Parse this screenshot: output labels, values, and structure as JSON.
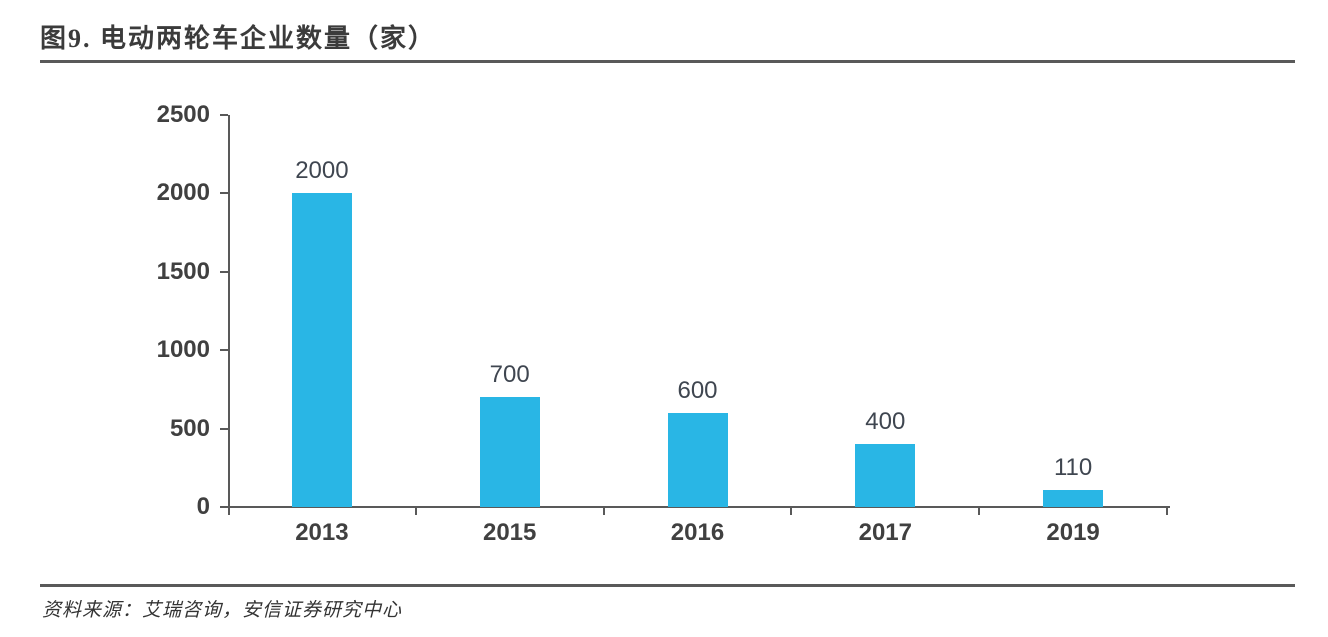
{
  "figure": {
    "title": "图9. 电动两轮车企业数量（家）"
  },
  "source": {
    "text": "资料来源：艾瑞咨询，安信证券研究中心"
  },
  "chart_data": {
    "type": "bar",
    "title": "电动两轮车企业数量（家）",
    "categories": [
      "2013",
      "2015",
      "2016",
      "2017",
      "2019"
    ],
    "values": [
      2000,
      700,
      600,
      400,
      110
    ],
    "data_labels": [
      "2000",
      "700",
      "600",
      "400",
      "110"
    ],
    "xlabel": "",
    "ylabel": "",
    "ylim": [
      0,
      2500
    ],
    "yticks": [
      0,
      500,
      1000,
      1500,
      2000,
      2500
    ],
    "grid": false,
    "legend": "none",
    "bar_color": "#29B6E5",
    "axis_color": "#595959",
    "axis_label_color": "#404040",
    "data_label_color": "#3F4650",
    "title_color": "#3B3B3B",
    "rule_color": "#595959",
    "source_color": "#333333"
  }
}
